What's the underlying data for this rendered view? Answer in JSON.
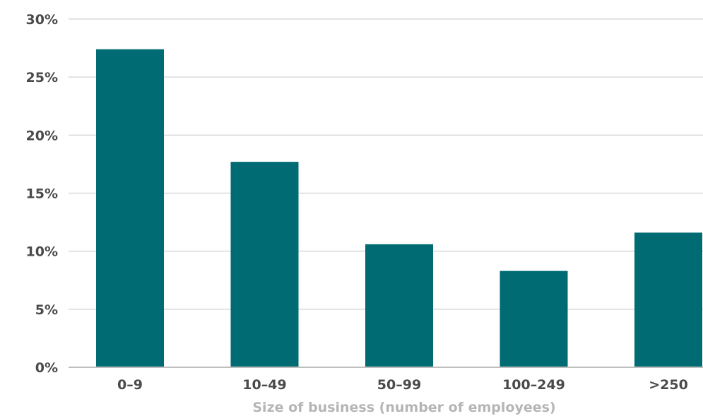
{
  "chart_data": {
    "type": "bar",
    "categories": [
      "0–9",
      "10–49",
      "50–99",
      "100–249",
      ">250"
    ],
    "values": [
      27.4,
      17.7,
      10.6,
      8.3,
      11.6
    ],
    "xlabel": "Size of business (number of employees)",
    "ylabel": "",
    "ylim": [
      0,
      30
    ],
    "yticks": [
      0,
      5,
      10,
      15,
      20,
      25,
      30
    ],
    "ytick_labels": [
      "0%",
      "5%",
      "10%",
      "15%",
      "20%",
      "25%",
      "30%"
    ],
    "grid": true,
    "legend": "none",
    "colors": {
      "bar": "#006b73",
      "grid": "#d9d9d9",
      "axis": "#bfbfbf",
      "tick_text": "#4a4a4a",
      "axis_title": "#b5b5b5"
    }
  }
}
